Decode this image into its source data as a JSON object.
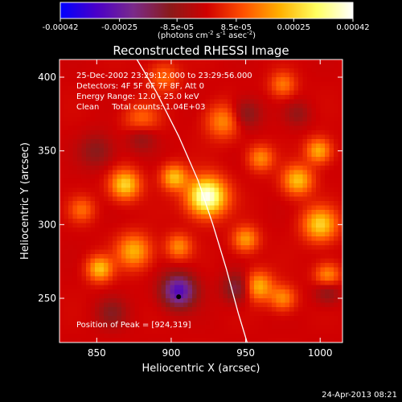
{
  "colorbar": {
    "ticks": [
      "-0.00042",
      "-0.00025",
      "-8.5e-05",
      "8.5e-05",
      "0.00025",
      "0.00042"
    ],
    "tick_values": [
      -0.00042,
      -0.00025,
      -8.5e-05,
      8.5e-05,
      0.00025,
      0.00042
    ],
    "range": [
      -0.00042,
      0.00042
    ],
    "units_parts": [
      "(photons cm",
      "-2",
      " s",
      "-1",
      " asec",
      "-2",
      ")"
    ],
    "stops": [
      "#0000ff",
      "#4b00c8",
      "#7a2a8a",
      "#8a1a1a",
      "#d00000",
      "#ff5000",
      "#ffb000",
      "#ffff60",
      "#ffffff"
    ]
  },
  "chart_data": {
    "type": "heatmap",
    "title": "Reconstructed RHESSI Image",
    "xlabel": "Heliocentric X (arcsec)",
    "ylabel": "Heliocentric Y (arcsec)",
    "xlim": [
      825,
      1015
    ],
    "ylim": [
      220,
      412
    ],
    "xticks": [
      850,
      900,
      950,
      1000
    ],
    "yticks": [
      250,
      300,
      350,
      400
    ],
    "info_lines": [
      "25-Dec-2002 23:29:12.000 to 23:29:56.000",
      "Detectors: 4F 5F 6F 7F 8F, Att 0",
      "Energy Range: 12.0 - 25.0 keV",
      "Clean     Total counts: 1.04E+03"
    ],
    "peak_label": "Position of Peak = [924,319]",
    "peak_position": [
      924,
      319
    ],
    "marker_point": [
      905,
      251
    ],
    "limb_curve": [
      [
        877,
        412
      ],
      [
        890,
        390
      ],
      [
        905,
        360
      ],
      [
        918,
        330
      ],
      [
        928,
        300
      ],
      [
        937,
        270
      ],
      [
        945,
        240
      ],
      [
        951,
        220
      ]
    ],
    "hot_spots": [
      [
        924,
        319,
        1.0,
        9
      ],
      [
        869,
        327,
        0.62,
        7
      ],
      [
        902,
        332,
        0.55,
        6
      ],
      [
        875,
        282,
        0.5,
        8
      ],
      [
        852,
        270,
        0.55,
        6
      ],
      [
        1000,
        300,
        0.6,
        8
      ],
      [
        985,
        330,
        0.55,
        7
      ],
      [
        999,
        350,
        0.5,
        6
      ],
      [
        958,
        258,
        0.55,
        7
      ],
      [
        950,
        290,
        0.45,
        6
      ],
      [
        975,
        250,
        0.4,
        6
      ],
      [
        905,
        285,
        0.4,
        6
      ],
      [
        935,
        370,
        0.4,
        8
      ],
      [
        880,
        370,
        0.35,
        8
      ],
      [
        1005,
        265,
        0.45,
        6
      ],
      [
        840,
        310,
        0.3,
        6
      ],
      [
        960,
        345,
        0.4,
        6
      ],
      [
        895,
        400,
        0.3,
        7
      ],
      [
        975,
        395,
        0.35,
        6
      ]
    ],
    "cold_spots": [
      [
        905,
        255,
        -0.7,
        8
      ],
      [
        945,
        257,
        -0.4,
        7
      ],
      [
        880,
        360,
        -0.3,
        7
      ],
      [
        950,
        375,
        -0.3,
        7
      ],
      [
        1005,
        255,
        -0.3,
        6
      ],
      [
        850,
        350,
        -0.25,
        8
      ],
      [
        860,
        240,
        -0.25,
        7
      ],
      [
        985,
        375,
        -0.2,
        6
      ]
    ]
  },
  "footer": {
    "timestamp": "24-Apr-2013 08:21"
  }
}
